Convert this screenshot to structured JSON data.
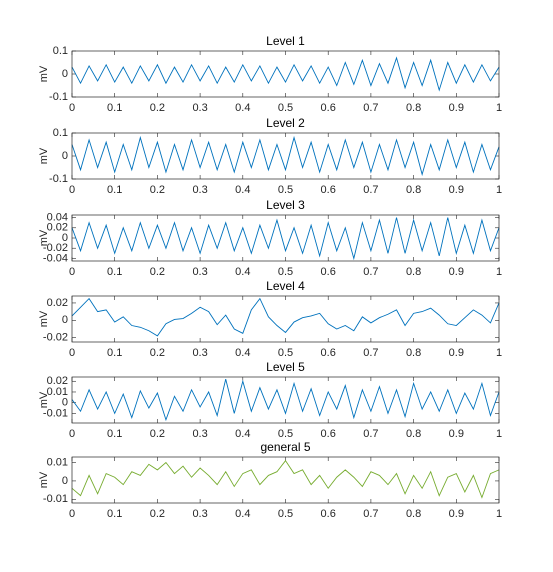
{
  "chart_data": [
    {
      "type": "line",
      "title": "Level 1",
      "ylabel": "mV",
      "color": "#0072bd",
      "x": [
        0,
        0.02,
        0.04,
        0.06,
        0.08,
        0.1,
        0.12,
        0.14,
        0.16,
        0.18,
        0.2,
        0.22,
        0.24,
        0.26,
        0.28,
        0.3,
        0.32,
        0.34,
        0.36,
        0.38,
        0.4,
        0.42,
        0.44,
        0.46,
        0.48,
        0.5,
        0.52,
        0.54,
        0.56,
        0.58,
        0.6,
        0.62,
        0.64,
        0.66,
        0.68,
        0.7,
        0.72,
        0.74,
        0.76,
        0.78,
        0.8,
        0.82,
        0.84,
        0.86,
        0.88,
        0.9,
        0.92,
        0.94,
        0.96,
        0.98,
        1
      ],
      "values": [
        0.03,
        -0.04,
        0.035,
        -0.03,
        0.04,
        -0.035,
        0.03,
        -0.04,
        0.035,
        -0.03,
        0.04,
        -0.04,
        0.03,
        -0.035,
        0.04,
        -0.03,
        0.035,
        -0.04,
        0.03,
        -0.035,
        0.04,
        -0.03,
        0.035,
        -0.04,
        0.03,
        -0.035,
        0.04,
        -0.03,
        0.035,
        -0.04,
        0.03,
        -0.05,
        0.05,
        -0.045,
        0.06,
        -0.05,
        0.045,
        -0.04,
        0.07,
        -0.06,
        0.05,
        -0.05,
        0.06,
        -0.07,
        0.05,
        -0.04,
        0.04,
        -0.035,
        0.04,
        -0.03,
        0.03
      ],
      "ylim": [
        -0.1,
        0.1
      ],
      "yticks": [
        -0.1,
        0,
        0.1
      ],
      "xlim": [
        0,
        1
      ],
      "xticks": [
        0,
        0.1,
        0.2,
        0.3,
        0.4,
        0.5,
        0.6,
        0.7,
        0.8,
        0.9,
        1
      ]
    },
    {
      "type": "line",
      "title": "Level 2",
      "ylabel": "mV",
      "color": "#0072bd",
      "x": [
        0,
        0.02,
        0.04,
        0.06,
        0.08,
        0.1,
        0.12,
        0.14,
        0.16,
        0.18,
        0.2,
        0.22,
        0.24,
        0.26,
        0.28,
        0.3,
        0.32,
        0.34,
        0.36,
        0.38,
        0.4,
        0.42,
        0.44,
        0.46,
        0.48,
        0.5,
        0.52,
        0.54,
        0.56,
        0.58,
        0.6,
        0.62,
        0.64,
        0.66,
        0.68,
        0.7,
        0.72,
        0.74,
        0.76,
        0.78,
        0.8,
        0.82,
        0.84,
        0.86,
        0.88,
        0.9,
        0.92,
        0.94,
        0.96,
        0.98,
        1
      ],
      "values": [
        0.05,
        -0.06,
        0.07,
        -0.05,
        0.06,
        -0.07,
        0.05,
        -0.06,
        0.08,
        -0.05,
        0.06,
        -0.07,
        0.05,
        -0.06,
        0.07,
        -0.05,
        0.06,
        -0.06,
        0.05,
        -0.07,
        0.06,
        -0.05,
        0.07,
        -0.06,
        0.05,
        -0.06,
        0.08,
        -0.05,
        0.06,
        -0.07,
        0.05,
        -0.06,
        0.07,
        -0.05,
        0.06,
        -0.07,
        0.05,
        -0.06,
        0.07,
        -0.05,
        0.06,
        -0.08,
        0.05,
        -0.06,
        0.07,
        -0.05,
        0.06,
        -0.07,
        0.05,
        -0.06,
        0.04
      ],
      "ylim": [
        -0.1,
        0.1
      ],
      "yticks": [
        -0.1,
        0,
        0.1
      ],
      "xlim": [
        0,
        1
      ],
      "xticks": [
        0,
        0.1,
        0.2,
        0.3,
        0.4,
        0.5,
        0.6,
        0.7,
        0.8,
        0.9,
        1
      ]
    },
    {
      "type": "line",
      "title": "Level 3",
      "ylabel": "mV",
      "color": "#0072bd",
      "x": [
        0,
        0.02,
        0.04,
        0.06,
        0.08,
        0.1,
        0.12,
        0.14,
        0.16,
        0.18,
        0.2,
        0.22,
        0.24,
        0.26,
        0.28,
        0.3,
        0.32,
        0.34,
        0.36,
        0.38,
        0.4,
        0.42,
        0.44,
        0.46,
        0.48,
        0.5,
        0.52,
        0.54,
        0.56,
        0.58,
        0.6,
        0.62,
        0.64,
        0.66,
        0.68,
        0.7,
        0.72,
        0.74,
        0.76,
        0.78,
        0.8,
        0.82,
        0.84,
        0.86,
        0.88,
        0.9,
        0.92,
        0.94,
        0.96,
        0.98,
        1
      ],
      "values": [
        0.02,
        -0.025,
        0.03,
        -0.02,
        0.025,
        -0.03,
        0.02,
        -0.025,
        0.03,
        -0.02,
        0.025,
        -0.02,
        0.03,
        -0.025,
        0.02,
        -0.03,
        0.025,
        -0.02,
        0.03,
        -0.025,
        0.02,
        -0.03,
        0.025,
        -0.02,
        0.035,
        -0.025,
        0.02,
        -0.03,
        0.025,
        -0.035,
        0.03,
        -0.025,
        0.02,
        -0.04,
        0.03,
        -0.025,
        0.035,
        -0.03,
        0.04,
        -0.03,
        0.035,
        -0.025,
        0.03,
        -0.035,
        0.04,
        -0.03,
        0.025,
        -0.03,
        0.035,
        -0.025,
        0.02
      ],
      "ylim": [
        -0.045,
        0.045
      ],
      "yticks": [
        -0.04,
        -0.02,
        0,
        0.02,
        0.04
      ],
      "xlim": [
        0,
        1
      ],
      "xticks": [
        0,
        0.1,
        0.2,
        0.3,
        0.4,
        0.5,
        0.6,
        0.7,
        0.8,
        0.9,
        1
      ]
    },
    {
      "type": "line",
      "title": "Level 4",
      "ylabel": "mV",
      "color": "#0072bd",
      "x": [
        0,
        0.02,
        0.04,
        0.06,
        0.08,
        0.1,
        0.12,
        0.14,
        0.16,
        0.18,
        0.2,
        0.22,
        0.24,
        0.26,
        0.28,
        0.3,
        0.32,
        0.34,
        0.36,
        0.38,
        0.4,
        0.42,
        0.44,
        0.46,
        0.48,
        0.5,
        0.52,
        0.54,
        0.56,
        0.58,
        0.6,
        0.62,
        0.64,
        0.66,
        0.68,
        0.7,
        0.72,
        0.74,
        0.76,
        0.78,
        0.8,
        0.82,
        0.84,
        0.86,
        0.88,
        0.9,
        0.92,
        0.94,
        0.96,
        0.98,
        1
      ],
      "values": [
        0.005,
        0.015,
        0.025,
        0.01,
        0.012,
        -0.002,
        0.004,
        -0.006,
        -0.008,
        -0.012,
        -0.018,
        -0.004,
        0.001,
        0.002,
        0.008,
        0.015,
        0.01,
        -0.005,
        0.006,
        -0.01,
        -0.015,
        0.012,
        0.025,
        0.004,
        -0.006,
        -0.014,
        -0.002,
        0.003,
        0.005,
        0.008,
        -0.004,
        -0.01,
        -0.006,
        -0.012,
        0.004,
        -0.003,
        0.003,
        0.007,
        0.012,
        -0.006,
        0.008,
        0.01,
        0.014,
        0.006,
        -0.004,
        -0.006,
        0.003,
        0.012,
        0.006,
        -0.003,
        0.02
      ],
      "ylim": [
        -0.025,
        0.028
      ],
      "yticks": [
        -0.02,
        0,
        0.02
      ],
      "xlim": [
        0,
        1
      ],
      "xticks": [
        0,
        0.1,
        0.2,
        0.3,
        0.4,
        0.5,
        0.6,
        0.7,
        0.8,
        0.9,
        1
      ]
    },
    {
      "type": "line",
      "title": "Level 5",
      "ylabel": "mV",
      "color": "#0072bd",
      "x": [
        0,
        0.02,
        0.04,
        0.06,
        0.08,
        0.1,
        0.12,
        0.14,
        0.16,
        0.18,
        0.2,
        0.22,
        0.24,
        0.26,
        0.28,
        0.3,
        0.32,
        0.34,
        0.36,
        0.38,
        0.4,
        0.42,
        0.44,
        0.46,
        0.48,
        0.5,
        0.52,
        0.54,
        0.56,
        0.58,
        0.6,
        0.62,
        0.64,
        0.66,
        0.68,
        0.7,
        0.72,
        0.74,
        0.76,
        0.78,
        0.8,
        0.82,
        0.84,
        0.86,
        0.88,
        0.9,
        0.92,
        0.94,
        0.96,
        0.98,
        1
      ],
      "values": [
        0.003,
        -0.008,
        0.012,
        -0.006,
        0.01,
        -0.01,
        0.008,
        -0.014,
        0.011,
        -0.005,
        0.009,
        -0.016,
        0.006,
        -0.008,
        0.012,
        -0.004,
        0.01,
        -0.012,
        0.022,
        -0.01,
        0.02,
        -0.008,
        0.014,
        -0.006,
        0.012,
        -0.01,
        0.018,
        -0.008,
        0.013,
        -0.012,
        0.01,
        -0.006,
        0.016,
        -0.014,
        0.012,
        -0.008,
        0.015,
        -0.01,
        0.012,
        -0.013,
        0.018,
        -0.006,
        0.01,
        -0.008,
        0.012,
        -0.01,
        0.009,
        -0.006,
        0.018,
        -0.012,
        0.01
      ],
      "ylim": [
        -0.019,
        0.024
      ],
      "yticks": [
        -0.01,
        0,
        0.01,
        0.02
      ],
      "xlim": [
        0,
        1
      ],
      "xticks": [
        0,
        0.1,
        0.2,
        0.3,
        0.4,
        0.5,
        0.6,
        0.7,
        0.8,
        0.9,
        1
      ]
    },
    {
      "type": "line",
      "title": "general 5",
      "ylabel": "mV",
      "color": "#77ac30",
      "x": [
        0,
        0.02,
        0.04,
        0.06,
        0.08,
        0.1,
        0.12,
        0.14,
        0.16,
        0.18,
        0.2,
        0.22,
        0.24,
        0.26,
        0.28,
        0.3,
        0.32,
        0.34,
        0.36,
        0.38,
        0.4,
        0.42,
        0.44,
        0.46,
        0.48,
        0.5,
        0.52,
        0.54,
        0.56,
        0.58,
        0.6,
        0.62,
        0.64,
        0.66,
        0.68,
        0.7,
        0.72,
        0.74,
        0.76,
        0.78,
        0.8,
        0.82,
        0.84,
        0.86,
        0.88,
        0.9,
        0.92,
        0.94,
        0.96,
        0.98,
        1
      ],
      "values": [
        -0.004,
        -0.008,
        0.003,
        -0.007,
        0.004,
        0.002,
        -0.002,
        0.005,
        0.003,
        0.009,
        0.006,
        0.01,
        0.004,
        0.008,
        0.002,
        0.007,
        0.003,
        -0.002,
        0.005,
        -0.003,
        0.004,
        0.006,
        -0.002,
        0.003,
        0.005,
        0.011,
        0.004,
        0.006,
        -0.002,
        0.003,
        -0.004,
        0.002,
        0.006,
        0.002,
        -0.003,
        0.005,
        0.003,
        -0.002,
        0.004,
        -0.007,
        0.003,
        -0.004,
        0.005,
        -0.008,
        0.002,
        0.004,
        -0.006,
        0.003,
        -0.009,
        0.004,
        0.006
      ],
      "ylim": [
        -0.012,
        0.013
      ],
      "yticks": [
        -0.01,
        0,
        0.01
      ],
      "xlim": [
        0,
        1
      ],
      "xticks": [
        0,
        0.1,
        0.2,
        0.3,
        0.4,
        0.5,
        0.6,
        0.7,
        0.8,
        0.9,
        1
      ]
    }
  ]
}
